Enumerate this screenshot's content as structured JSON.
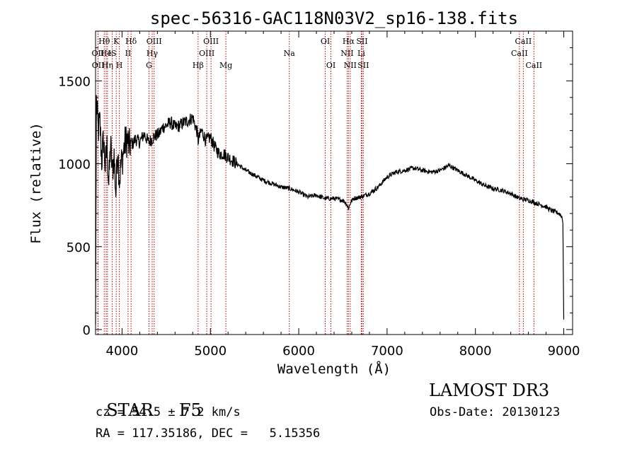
{
  "chart_data": {
    "type": "line",
    "title": "spec-56316-GAC118N03V2_sp16-138.fits",
    "xlabel": "Wavelength (Å)",
    "ylabel": "Flux (relative)",
    "xlim": [
      3700,
      9100
    ],
    "ylim": [
      -30,
      1800
    ],
    "x_ticks": [
      4000,
      5000,
      6000,
      7000,
      8000,
      9000
    ],
    "y_ticks": [
      0,
      500,
      1000,
      1500
    ],
    "grid": false,
    "series": [
      {
        "name": "spectrum",
        "x": [
          3700,
          3710,
          3730,
          3750,
          3770,
          3790,
          3810,
          3830,
          3850,
          3870,
          3890,
          3910,
          3930,
          3950,
          3970,
          3990,
          4010,
          4030,
          4060,
          4080,
          4100,
          4120,
          4150,
          4200,
          4250,
          4300,
          4340,
          4380,
          4420,
          4460,
          4500,
          4550,
          4600,
          4650,
          4700,
          4750,
          4800,
          4850,
          4861,
          4900,
          4950,
          5000,
          5050,
          5100,
          5150,
          5200,
          5300,
          5400,
          5500,
          5600,
          5700,
          5800,
          5900,
          6000,
          6100,
          6200,
          6300,
          6400,
          6500,
          6540,
          6563,
          6590,
          6620,
          6700,
          6800,
          6900,
          7000,
          7100,
          7200,
          7300,
          7400,
          7500,
          7600,
          7700,
          7800,
          7900,
          8000,
          8100,
          8200,
          8300,
          8400,
          8500,
          8600,
          8700,
          8800,
          8850,
          8900,
          8950,
          8980,
          8990,
          9000
        ],
        "y": [
          30,
          1380,
          1200,
          1250,
          1020,
          1150,
          980,
          1100,
          870,
          1120,
          950,
          1050,
          820,
          1100,
          900,
          1000,
          1050,
          1120,
          1150,
          1100,
          1130,
          1120,
          1150,
          1130,
          1180,
          1130,
          1150,
          1170,
          1180,
          1220,
          1230,
          1250,
          1220,
          1230,
          1250,
          1260,
          1280,
          1190,
          1140,
          1200,
          1140,
          1160,
          1100,
          1060,
          1060,
          1040,
          1000,
          960,
          930,
          900,
          880,
          860,
          850,
          830,
          800,
          810,
          790,
          790,
          780,
          760,
          730,
          770,
          790,
          800,
          820,
          860,
          920,
          950,
          960,
          975,
          960,
          950,
          960,
          990,
          960,
          930,
          900,
          870,
          850,
          840,
          820,
          790,
          780,
          760,
          740,
          720,
          710,
          700,
          680,
          640,
          60
        ]
      }
    ],
    "spectral_lines": [
      {
        "label": "Hθ",
        "x": 3798,
        "row": 1
      },
      {
        "label": "OII",
        "x": 3727,
        "row": 2
      },
      {
        "label": "OII",
        "x": 3729,
        "row": 3
      },
      {
        "label": "He",
        "x": 3820,
        "row": 2
      },
      {
        "label": "Hη",
        "x": 3835,
        "row": 3
      },
      {
        "label": "K",
        "x": 3934,
        "row": 1
      },
      {
        "label": "IS",
        "x": 3889,
        "row": 2
      },
      {
        "label": "H",
        "x": 3969,
        "row": 3
      },
      {
        "label": "Hδ",
        "x": 4102,
        "row": 1
      },
      {
        "label": "II",
        "x": 4068,
        "row": 2
      },
      {
        "label": "OIII",
        "x": 4363,
        "row": 1
      },
      {
        "label": "Hγ",
        "x": 4341,
        "row": 2
      },
      {
        "label": "G",
        "x": 4305,
        "row": 3
      },
      {
        "label": "OIII",
        "x": 5007,
        "row": 1
      },
      {
        "label": "OIII",
        "x": 4959,
        "row": 2
      },
      {
        "label": "Hβ",
        "x": 4861,
        "row": 3
      },
      {
        "label": "Mg",
        "x": 5175,
        "row": 3
      },
      {
        "label": "Na",
        "x": 5893,
        "row": 2
      },
      {
        "label": "OI",
        "x": 6300,
        "row": 1
      },
      {
        "label": "OI",
        "x": 6364,
        "row": 3
      },
      {
        "label": "Hα",
        "x": 6563,
        "row": 1
      },
      {
        "label": "SII",
        "x": 6716,
        "row": 1
      },
      {
        "label": "NII",
        "x": 6548,
        "row": 2
      },
      {
        "label": "Li",
        "x": 6708,
        "row": 2
      },
      {
        "label": "NII",
        "x": 6583,
        "row": 3
      },
      {
        "label": "SII",
        "x": 6731,
        "row": 3
      },
      {
        "label": "CaII",
        "x": 8542,
        "row": 1
      },
      {
        "label": "CaII",
        "x": 8498,
        "row": 2
      },
      {
        "label": "CaII",
        "x": 8662,
        "row": 3
      }
    ]
  },
  "info": {
    "object_class": "STAR",
    "subclass": "F5",
    "redshift": "cz = 54.5 ± 7.2 km/s",
    "coords": "RA = 117.35186, DEC =   5.15356",
    "survey": "LAMOST DR3",
    "obs_date": "Obs-Date: 20130123"
  }
}
